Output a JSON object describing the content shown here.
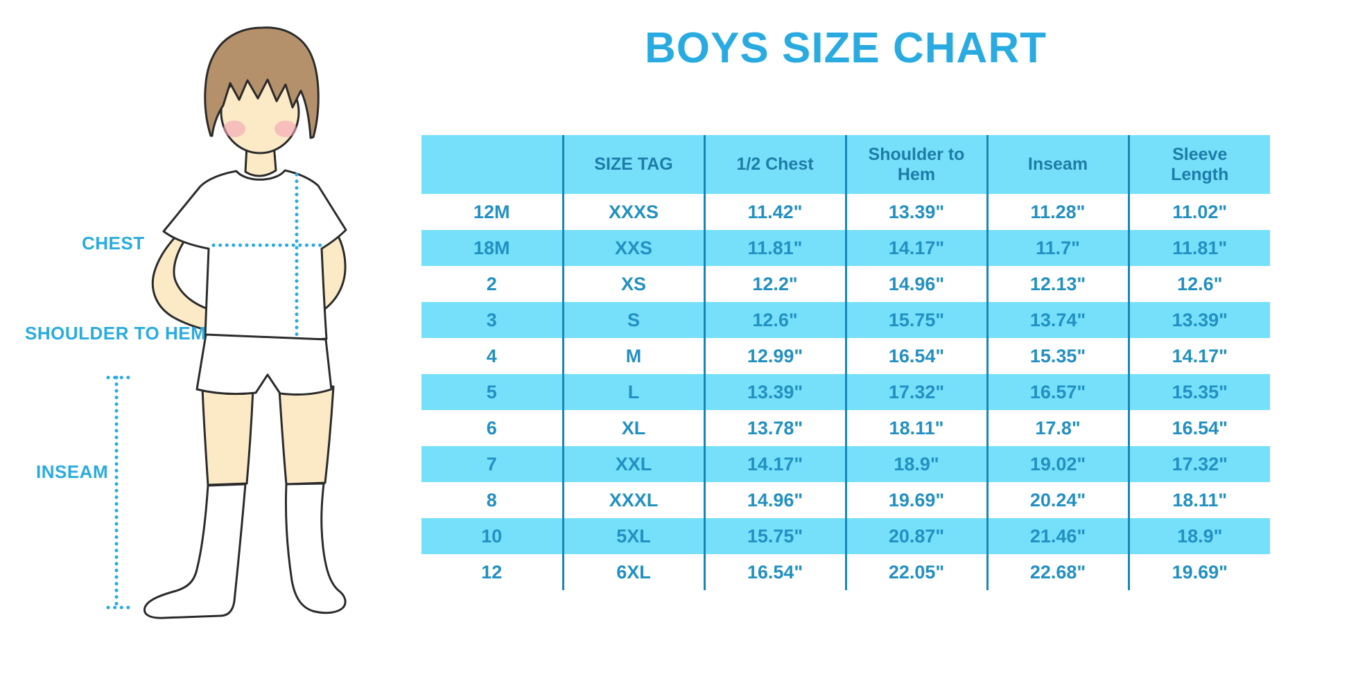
{
  "title": "BOYS SIZE CHART",
  "figure_labels": {
    "chest": "CHEST",
    "shoulder_to_hem": "SHOULDER TO HEM",
    "inseam": "INSEAM"
  },
  "colors": {
    "accent_blue": "#29ABE2",
    "table_fill": "#76E0FA",
    "header_text": "#1C7DA8",
    "cell_text": "#2290C2",
    "divider": "#1887B5",
    "skin": "#FCE9C6",
    "hair": "#B5916B",
    "blush": "#F2A4B4"
  },
  "chart_data": {
    "type": "table",
    "title": "BOYS SIZE CHART",
    "columns": [
      "",
      "SIZE TAG",
      "1/2 Chest",
      "Shoulder to Hem",
      "Inseam",
      "Sleeve Length"
    ],
    "rows": [
      [
        "12M",
        "XXXS",
        "11.42\"",
        "13.39\"",
        "11.28\"",
        "11.02\""
      ],
      [
        "18M",
        "XXS",
        "11.81\"",
        "14.17\"",
        "11.7\"",
        "11.81\""
      ],
      [
        "2",
        "XS",
        "12.2\"",
        "14.96\"",
        "12.13\"",
        "12.6\""
      ],
      [
        "3",
        "S",
        "12.6\"",
        "15.75\"",
        "13.74\"",
        "13.39\""
      ],
      [
        "4",
        "M",
        "12.99\"",
        "16.54\"",
        "15.35\"",
        "14.17\""
      ],
      [
        "5",
        "L",
        "13.39\"",
        "17.32\"",
        "16.57\"",
        "15.35\""
      ],
      [
        "6",
        "XL",
        "13.78\"",
        "18.11\"",
        "17.8\"",
        "16.54\""
      ],
      [
        "7",
        "XXL",
        "14.17\"",
        "18.9\"",
        "19.02\"",
        "17.32\""
      ],
      [
        "8",
        "XXXL",
        "14.96\"",
        "19.69\"",
        "20.24\"",
        "18.11\""
      ],
      [
        "10",
        "5XL",
        "15.75\"",
        "20.87\"",
        "21.46\"",
        "18.9\""
      ],
      [
        "12",
        "6XL",
        "16.54\"",
        "22.05\"",
        "22.68\"",
        "19.69\""
      ]
    ]
  }
}
